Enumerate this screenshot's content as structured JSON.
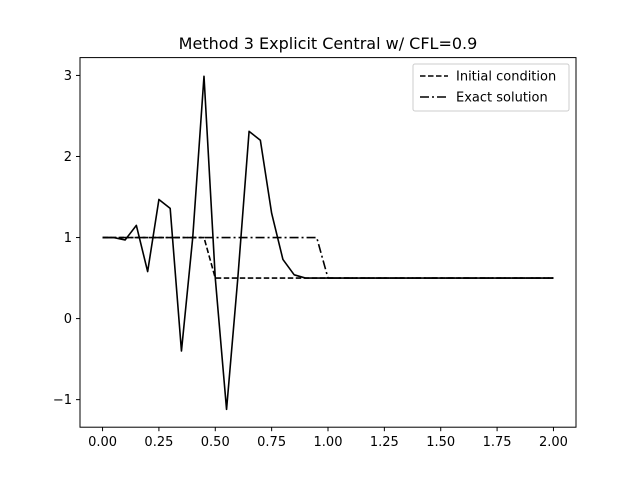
{
  "chart_data": {
    "type": "line",
    "title": "Method 3 Explicit Central w/ CFL=0.9",
    "xlabel": "",
    "ylabel": "",
    "xlim": [
      -0.1,
      2.1
    ],
    "ylim": [
      -1.34,
      3.22
    ],
    "xticks": [
      0.0,
      0.25,
      0.5,
      0.75,
      1.0,
      1.25,
      1.5,
      1.75,
      2.0
    ],
    "xtick_labels": [
      "0.00",
      "0.25",
      "0.50",
      "0.75",
      "1.00",
      "1.25",
      "1.50",
      "1.75",
      "2.00"
    ],
    "yticks": [
      -1,
      0,
      1,
      2,
      3
    ],
    "ytick_labels": [
      "−1",
      "0",
      "1",
      "2",
      "3"
    ],
    "grid": false,
    "legend_position": "top-right",
    "series": [
      {
        "name": "",
        "style": "solid",
        "color": "#000000",
        "x": [
          0.0,
          0.05,
          0.1,
          0.15,
          0.2,
          0.25,
          0.3,
          0.35,
          0.4,
          0.45,
          0.5,
          0.55,
          0.6,
          0.65,
          0.7,
          0.75,
          0.8,
          0.85,
          0.9,
          0.95,
          1.0,
          2.0
        ],
        "y": [
          1.0,
          1.0,
          0.97,
          1.15,
          0.58,
          1.47,
          1.36,
          -0.4,
          1.0,
          2.99,
          0.5,
          -1.12,
          0.5,
          2.31,
          2.2,
          1.3,
          0.73,
          0.54,
          0.5,
          0.5,
          0.5,
          0.5
        ]
      },
      {
        "name": "Initial condition",
        "style": "dashed",
        "color": "#000000",
        "x": [
          0.0,
          0.45,
          0.5,
          2.0
        ],
        "y": [
          1.0,
          1.0,
          0.5,
          0.5
        ]
      },
      {
        "name": "Exact solution",
        "style": "dashdot",
        "color": "#000000",
        "x": [
          0.0,
          0.95,
          1.0,
          2.0
        ],
        "y": [
          1.0,
          1.0,
          0.5,
          0.5
        ]
      }
    ]
  }
}
